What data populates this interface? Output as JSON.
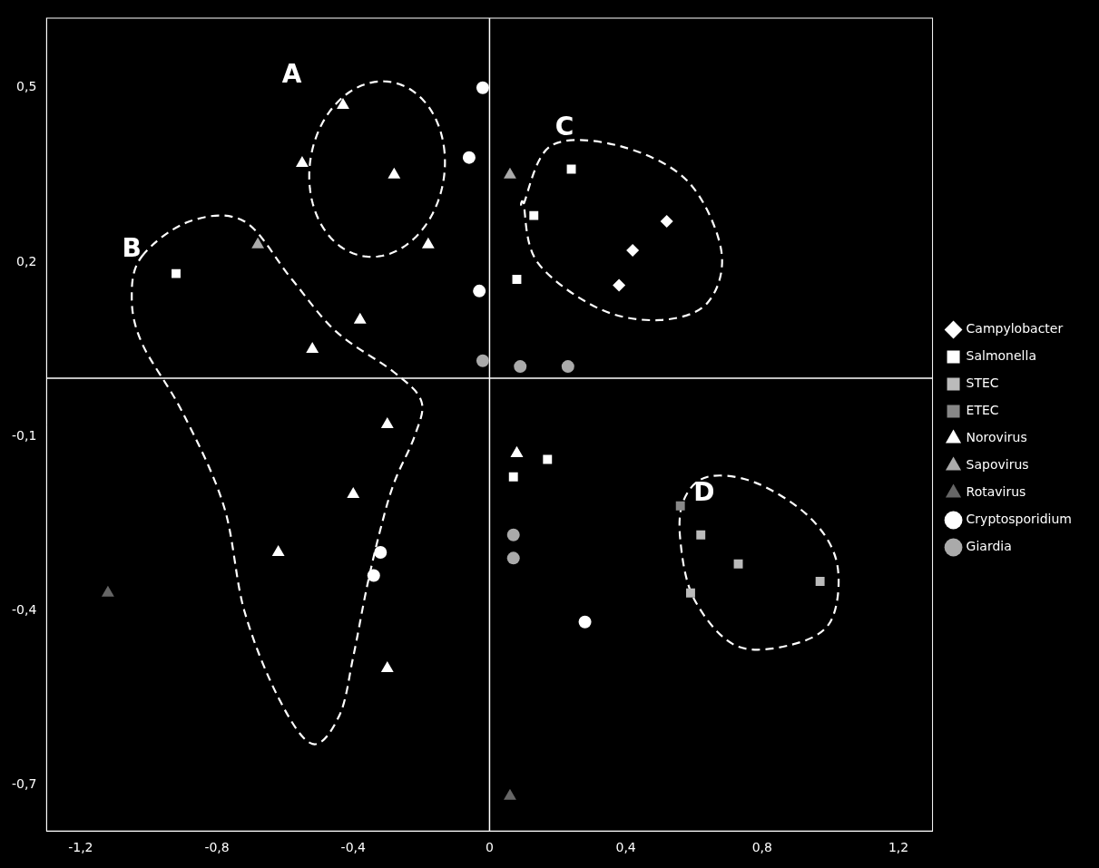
{
  "chart_data": {
    "type": "scatter",
    "xlim": [
      -1.3,
      1.3
    ],
    "ylim": [
      -0.78,
      0.62
    ],
    "xticks": [
      {
        "value": -1.2,
        "label": "-1,2"
      },
      {
        "value": -0.8,
        "label": "-0,8"
      },
      {
        "value": -0.4,
        "label": "-0,4"
      },
      0,
      {
        "value": 0.4,
        "label": "0,4"
      },
      {
        "value": 0.8,
        "label": "0,8"
      },
      {
        "value": 1.2,
        "label": "1,2"
      }
    ],
    "yticks": [
      {
        "value": -0.7,
        "label": "-0,7"
      },
      {
        "value": -0.4,
        "label": "-0,4"
      },
      {
        "value": -0.1,
        "label": "-0,1"
      },
      {
        "value": 0.2,
        "label": "0,2"
      },
      {
        "value": 0.5,
        "label": "0,5"
      }
    ],
    "grid": false,
    "legend": "right",
    "series": [
      {
        "name": "Campylobacter",
        "marker": "diamond",
        "color": "#ffffff",
        "x": [
          0.42,
          0.52,
          0.38
        ],
        "values": [
          0.22,
          0.27,
          0.16
        ]
      },
      {
        "name": "Salmonella",
        "marker": "square",
        "color": "#ffffff",
        "x": [
          -0.92,
          0.13,
          0.24,
          0.08,
          0.07,
          0.17
        ],
        "values": [
          0.18,
          0.28,
          0.36,
          0.17,
          -0.17,
          -0.14
        ]
      },
      {
        "name": "STEC",
        "marker": "square",
        "color": "#bbbbbb",
        "x": [
          0.62,
          0.73,
          0.59,
          0.97
        ],
        "values": [
          -0.27,
          -0.32,
          -0.37,
          -0.35
        ]
      },
      {
        "name": "ETEC",
        "marker": "square",
        "color": "#888888",
        "x": [
          0.56
        ],
        "values": [
          -0.22
        ]
      },
      {
        "name": "Norovirus",
        "marker": "triangle",
        "color": "#ffffff",
        "x": [
          -0.55,
          -0.43,
          -0.28,
          -0.18,
          -0.38,
          -0.52,
          -0.3,
          -0.4,
          -0.62,
          -0.3,
          0.08
        ],
        "values": [
          0.37,
          0.47,
          0.35,
          0.23,
          0.1,
          0.05,
          -0.08,
          -0.2,
          -0.3,
          -0.5,
          -0.13
        ]
      },
      {
        "name": "Sapovirus",
        "marker": "triangle",
        "color": "#aaaaaa",
        "x": [
          -0.68,
          0.06,
          0.08
        ],
        "values": [
          0.23,
          0.35,
          -0.13
        ]
      },
      {
        "name": "Rotavirus",
        "marker": "triangle",
        "color": "#666666",
        "x": [
          -1.12,
          0.06
        ],
        "values": [
          -0.37,
          -0.72
        ]
      },
      {
        "name": "Cryptosporidium",
        "marker": "circle",
        "color": "#ffffff",
        "x": [
          -0.02,
          -0.06,
          -0.03,
          -0.32,
          -0.34,
          0.28
        ],
        "values": [
          0.5,
          0.38,
          0.15,
          -0.3,
          -0.34,
          -0.42
        ]
      },
      {
        "name": "Giardia",
        "marker": "circle",
        "color": "#aaaaaa",
        "x": [
          -0.02,
          0.09,
          0.23,
          0.07,
          0.07
        ],
        "values": [
          0.03,
          0.02,
          0.02,
          -0.27,
          -0.31
        ]
      }
    ],
    "annotations": [
      {
        "text": "A",
        "x": -0.58,
        "y": 0.52
      },
      {
        "text": "B",
        "x": -1.05,
        "y": 0.22
      },
      {
        "text": "C",
        "x": 0.22,
        "y": 0.43
      },
      {
        "text": "D",
        "x": 0.63,
        "y": -0.2
      }
    ],
    "outlines": [
      {
        "shape": "ellipse",
        "color": "#ffffff",
        "line_style": "dashed",
        "x": -0.33,
        "y": 0.36,
        "width": 0.4,
        "height": 0.3,
        "angle": 8
      },
      {
        "shape": "closed_curve",
        "color": "#ffffff",
        "line_style": "dashed",
        "x": [
          -1.02,
          -0.88,
          -0.72,
          -0.58,
          -0.45,
          -0.28,
          -0.2,
          -0.22,
          -0.28,
          -0.32,
          -0.36,
          -0.4,
          -0.44,
          -0.52,
          -0.62,
          -0.72,
          -0.78,
          -0.9,
          -1.02,
          -1.05
        ],
        "y": [
          0.21,
          0.27,
          0.27,
          0.17,
          0.08,
          0.01,
          -0.04,
          -0.1,
          -0.18,
          -0.26,
          -0.36,
          -0.48,
          -0.58,
          -0.63,
          -0.55,
          -0.4,
          -0.22,
          -0.06,
          0.06,
          0.14
        ]
      },
      {
        "shape": "closed_curve",
        "color": "#ffffff",
        "line_style": "dashed",
        "x": [
          0.1,
          0.18,
          0.38,
          0.58,
          0.68,
          0.64,
          0.5,
          0.32,
          0.14,
          0.1
        ],
        "y": [
          0.3,
          0.4,
          0.4,
          0.34,
          0.22,
          0.13,
          0.1,
          0.12,
          0.2,
          0.3
        ]
      },
      {
        "shape": "closed_curve",
        "color": "#ffffff",
        "line_style": "dashed",
        "x": [
          0.57,
          0.64,
          0.78,
          0.94,
          1.02,
          1.0,
          0.88,
          0.72,
          0.6,
          0.56
        ],
        "y": [
          -0.21,
          -0.17,
          -0.18,
          -0.24,
          -0.32,
          -0.42,
          -0.46,
          -0.46,
          -0.38,
          -0.28
        ]
      }
    ]
  }
}
